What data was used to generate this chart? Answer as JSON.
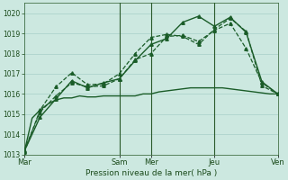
{
  "xlabel": "Pression niveau de la mer( hPa )",
  "background_color": "#cce8e0",
  "grid_color": "#a8cfc8",
  "line_color": "#1a5c28",
  "ylim": [
    1013,
    1020.5
  ],
  "xlim": [
    0,
    96
  ],
  "yticks": [
    1013,
    1014,
    1015,
    1016,
    1017,
    1018,
    1019,
    1020
  ],
  "day_ticks": [
    0,
    36,
    48,
    72,
    96
  ],
  "day_labels": [
    "Mar",
    "Sam",
    "Mer",
    "Jeu",
    "Ven"
  ],
  "vlines": [
    36,
    48,
    72
  ],
  "series1": {
    "x": [
      0,
      3,
      6,
      9,
      12,
      15,
      18,
      21,
      24,
      27,
      30,
      33,
      36,
      39,
      42,
      45,
      48,
      51,
      54,
      57,
      60,
      63,
      66,
      69,
      72,
      75,
      78,
      81,
      84,
      87,
      90,
      93,
      96
    ],
    "y": [
      1013.1,
      1014.8,
      1015.2,
      1015.5,
      1015.7,
      1015.8,
      1015.8,
      1015.9,
      1015.85,
      1015.85,
      1015.9,
      1015.9,
      1015.9,
      1015.9,
      1015.9,
      1016.0,
      1016.0,
      1016.1,
      1016.15,
      1016.2,
      1016.25,
      1016.3,
      1016.3,
      1016.3,
      1016.3,
      1016.3,
      1016.25,
      1016.2,
      1016.15,
      1016.1,
      1016.05,
      1016.0,
      1016.0
    ],
    "style": "-",
    "marker": null,
    "linewidth": 1.0,
    "zorder": 2
  },
  "series2": {
    "x": [
      0,
      6,
      12,
      18,
      24,
      30,
      36,
      42,
      48,
      54,
      60,
      66,
      72,
      78,
      84,
      90,
      96
    ],
    "y": [
      1013.2,
      1015.1,
      1015.9,
      1016.55,
      1016.35,
      1016.4,
      1016.75,
      1017.7,
      1018.0,
      1018.85,
      1018.9,
      1018.6,
      1019.15,
      1019.5,
      1018.25,
      1016.55,
      1016.0
    ],
    "style": "--",
    "marker": "^",
    "markersize": 2.5,
    "linewidth": 0.9,
    "zorder": 3
  },
  "series3": {
    "x": [
      0,
      6,
      12,
      18,
      24,
      30,
      36,
      42,
      48,
      54,
      60,
      66,
      72,
      78,
      84,
      90,
      96
    ],
    "y": [
      1013.1,
      1015.2,
      1016.35,
      1017.05,
      1016.45,
      1016.5,
      1017.0,
      1018.0,
      1018.8,
      1018.95,
      1018.85,
      1018.45,
      1019.2,
      1019.75,
      1019.1,
      1016.4,
      1016.0
    ],
    "style": "--",
    "marker": "^",
    "markersize": 2.5,
    "linewidth": 0.9,
    "zorder": 3
  },
  "series4": {
    "x": [
      0,
      6,
      12,
      18,
      24,
      30,
      36,
      42,
      48,
      54,
      60,
      66,
      72,
      78,
      84,
      90,
      96
    ],
    "y": [
      1013.15,
      1014.85,
      1015.75,
      1016.65,
      1016.3,
      1016.55,
      1016.75,
      1017.65,
      1018.45,
      1018.75,
      1019.55,
      1019.85,
      1019.35,
      1019.8,
      1019.05,
      1016.6,
      1016.0
    ],
    "style": "-",
    "marker": "^",
    "markersize": 2.5,
    "linewidth": 1.0,
    "zorder": 4
  }
}
